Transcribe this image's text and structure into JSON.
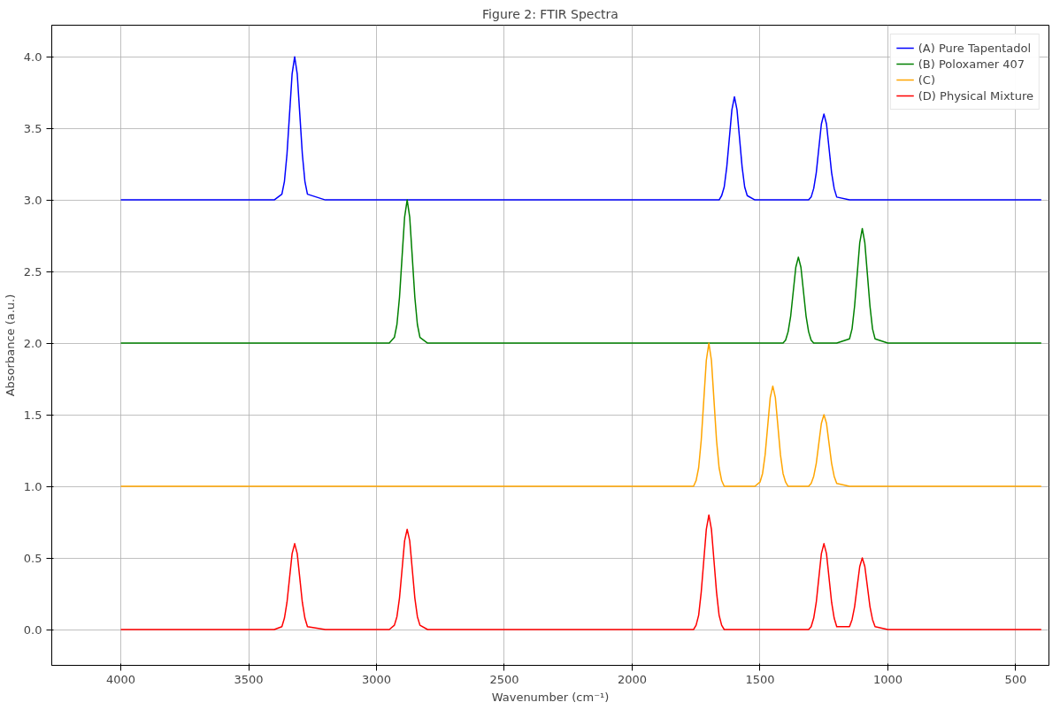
{
  "chart_data": {
    "type": "line",
    "title": "Figure 2: FTIR Spectra",
    "xlabel": "Wavenumber (cm⁻¹)",
    "ylabel": "Absorbance (a.u.)",
    "x": [
      4000,
      3900,
      3800,
      3700,
      3600,
      3500,
      3400,
      3370,
      3360,
      3350,
      3340,
      3330,
      3320,
      3310,
      3300,
      3290,
      3280,
      3270,
      3200,
      3100,
      3000,
      2950,
      2930,
      2920,
      2910,
      2900,
      2890,
      2880,
      2870,
      2860,
      2850,
      2840,
      2830,
      2800,
      2700,
      2600,
      2500,
      2400,
      2300,
      2200,
      2100,
      2000,
      1900,
      1800,
      1760,
      1750,
      1740,
      1730,
      1720,
      1710,
      1700,
      1690,
      1680,
      1670,
      1660,
      1650,
      1640,
      1630,
      1620,
      1610,
      1600,
      1590,
      1580,
      1570,
      1560,
      1550,
      1520,
      1500,
      1490,
      1480,
      1470,
      1460,
      1450,
      1440,
      1430,
      1420,
      1410,
      1400,
      1390,
      1380,
      1370,
      1360,
      1350,
      1340,
      1330,
      1320,
      1310,
      1300,
      1290,
      1280,
      1270,
      1260,
      1250,
      1240,
      1230,
      1220,
      1210,
      1200,
      1150,
      1140,
      1130,
      1120,
      1110,
      1100,
      1090,
      1080,
      1070,
      1060,
      1050,
      1000,
      900,
      800,
      700,
      600,
      500,
      400
    ],
    "series": [
      {
        "name": "(A) Pure Tapentadol",
        "color": "#0000ff",
        "values": [
          3.0,
          3.0,
          3.0,
          3.0,
          3.0,
          3.0,
          3.0,
          3.04,
          3.13,
          3.32,
          3.6,
          3.88,
          4.0,
          3.88,
          3.6,
          3.32,
          3.13,
          3.04,
          3.0,
          3.0,
          3.0,
          3.0,
          3.0,
          3.0,
          3.0,
          3.0,
          3.0,
          3.0,
          3.0,
          3.0,
          3.0,
          3.0,
          3.0,
          3.0,
          3.0,
          3.0,
          3.0,
          3.0,
          3.0,
          3.0,
          3.0,
          3.0,
          3.0,
          3.0,
          3.0,
          3.0,
          3.0,
          3.0,
          3.0,
          3.0,
          3.0,
          3.0,
          3.0,
          3.0,
          3.0,
          3.03,
          3.09,
          3.23,
          3.43,
          3.63,
          3.72,
          3.63,
          3.43,
          3.23,
          3.09,
          3.03,
          3.0,
          3.0,
          3.0,
          3.0,
          3.0,
          3.0,
          3.0,
          3.0,
          3.0,
          3.0,
          3.0,
          3.0,
          3.0,
          3.0,
          3.0,
          3.0,
          3.0,
          3.0,
          3.0,
          3.0,
          3.0,
          3.02,
          3.08,
          3.19,
          3.36,
          3.53,
          3.6,
          3.53,
          3.36,
          3.19,
          3.08,
          3.02,
          3.0,
          3.0,
          3.0,
          3.0,
          3.0,
          3.0,
          3.0,
          3.0,
          3.0,
          3.0,
          3.0,
          3.0,
          3.0,
          3.0,
          3.0,
          3.0,
          3.0,
          3.0
        ]
      },
      {
        "name": "(B) Poloxamer 407",
        "color": "#008000",
        "values": [
          2.0,
          2.0,
          2.0,
          2.0,
          2.0,
          2.0,
          2.0,
          2.0,
          2.0,
          2.0,
          2.0,
          2.0,
          2.0,
          2.0,
          2.0,
          2.0,
          2.0,
          2.0,
          2.0,
          2.0,
          2.0,
          2.0,
          2.04,
          2.13,
          2.32,
          2.6,
          2.88,
          3.0,
          2.88,
          2.6,
          2.32,
          2.13,
          2.04,
          2.0,
          2.0,
          2.0,
          2.0,
          2.0,
          2.0,
          2.0,
          2.0,
          2.0,
          2.0,
          2.0,
          2.0,
          2.0,
          2.0,
          2.0,
          2.0,
          2.0,
          2.0,
          2.0,
          2.0,
          2.0,
          2.0,
          2.0,
          2.0,
          2.0,
          2.0,
          2.0,
          2.0,
          2.0,
          2.0,
          2.0,
          2.0,
          2.0,
          2.0,
          2.0,
          2.0,
          2.0,
          2.0,
          2.0,
          2.0,
          2.0,
          2.0,
          2.0,
          2.0,
          2.02,
          2.08,
          2.19,
          2.36,
          2.53,
          2.6,
          2.53,
          2.36,
          2.19,
          2.08,
          2.02,
          2.0,
          2.0,
          2.0,
          2.0,
          2.0,
          2.0,
          2.0,
          2.0,
          2.0,
          2.0,
          2.03,
          2.1,
          2.26,
          2.48,
          2.7,
          2.8,
          2.7,
          2.48,
          2.26,
          2.1,
          2.03,
          2.0,
          2.0,
          2.0,
          2.0,
          2.0,
          2.0,
          2.0
        ]
      },
      {
        "name": "(C)",
        "color": "#ffa500",
        "values": [
          1.0,
          1.0,
          1.0,
          1.0,
          1.0,
          1.0,
          1.0,
          1.0,
          1.0,
          1.0,
          1.0,
          1.0,
          1.0,
          1.0,
          1.0,
          1.0,
          1.0,
          1.0,
          1.0,
          1.0,
          1.0,
          1.0,
          1.0,
          1.0,
          1.0,
          1.0,
          1.0,
          1.0,
          1.0,
          1.0,
          1.0,
          1.0,
          1.0,
          1.0,
          1.0,
          1.0,
          1.0,
          1.0,
          1.0,
          1.0,
          1.0,
          1.0,
          1.0,
          1.0,
          1.0,
          1.04,
          1.13,
          1.32,
          1.6,
          1.88,
          2.0,
          1.88,
          1.6,
          1.32,
          1.13,
          1.04,
          1.0,
          1.0,
          1.0,
          1.0,
          1.0,
          1.0,
          1.0,
          1.0,
          1.0,
          1.0,
          1.0,
          1.03,
          1.09,
          1.22,
          1.42,
          1.62,
          1.7,
          1.62,
          1.42,
          1.22,
          1.09,
          1.03,
          1.0,
          1.0,
          1.0,
          1.0,
          1.0,
          1.0,
          1.0,
          1.0,
          1.0,
          1.02,
          1.07,
          1.16,
          1.3,
          1.44,
          1.5,
          1.44,
          1.3,
          1.16,
          1.07,
          1.02,
          1.0,
          1.0,
          1.0,
          1.0,
          1.0,
          1.0,
          1.0,
          1.0,
          1.0,
          1.0,
          1.0,
          1.0,
          1.0,
          1.0,
          1.0,
          1.0,
          1.0,
          1.0
        ]
      },
      {
        "name": "(D) Physical Mixture",
        "color": "#ff0000",
        "values": [
          0,
          0,
          0,
          0,
          0,
          0,
          0,
          0.02,
          0.08,
          0.19,
          0.36,
          0.53,
          0.6,
          0.53,
          0.36,
          0.19,
          0.08,
          0.02,
          0,
          0,
          0,
          0,
          0.03,
          0.09,
          0.22,
          0.42,
          0.62,
          0.7,
          0.62,
          0.42,
          0.22,
          0.09,
          0.03,
          0,
          0,
          0,
          0,
          0,
          0,
          0,
          0,
          0,
          0,
          0,
          0,
          0.03,
          0.1,
          0.26,
          0.48,
          0.7,
          0.8,
          0.7,
          0.48,
          0.26,
          0.1,
          0.03,
          0,
          0,
          0,
          0,
          0,
          0,
          0,
          0,
          0,
          0,
          0,
          0,
          0,
          0,
          0,
          0,
          0,
          0,
          0,
          0,
          0,
          0,
          0,
          0,
          0,
          0,
          0,
          0,
          0,
          0,
          0,
          0.02,
          0.08,
          0.19,
          0.36,
          0.53,
          0.6,
          0.53,
          0.36,
          0.19,
          0.08,
          0.02,
          0.02,
          0.07,
          0.16,
          0.3,
          0.44,
          0.5,
          0.44,
          0.3,
          0.16,
          0.07,
          0.02,
          0,
          0,
          0,
          0,
          0,
          0,
          0
        ]
      }
    ],
    "xlim": [
      4270,
      370
    ],
    "xticks": [
      4000,
      3500,
      3000,
      2500,
      2000,
      1500,
      1000,
      500
    ],
    "ylim": [
      -0.25,
      4.22
    ],
    "yticks": [
      {
        "value": 0,
        "label": "0.0"
      },
      {
        "value": 0.5,
        "label": "0.5"
      },
      {
        "value": 1,
        "label": "1.0"
      },
      {
        "value": 1.5,
        "label": "1.5"
      },
      {
        "value": 2,
        "label": "2.0"
      },
      {
        "value": 2.5,
        "label": "2.5"
      },
      {
        "value": 3,
        "label": "3.0"
      },
      {
        "value": 3.5,
        "label": "3.5"
      },
      {
        "value": 4,
        "label": "4.0"
      }
    ],
    "grid": true,
    "legend": "top right"
  }
}
